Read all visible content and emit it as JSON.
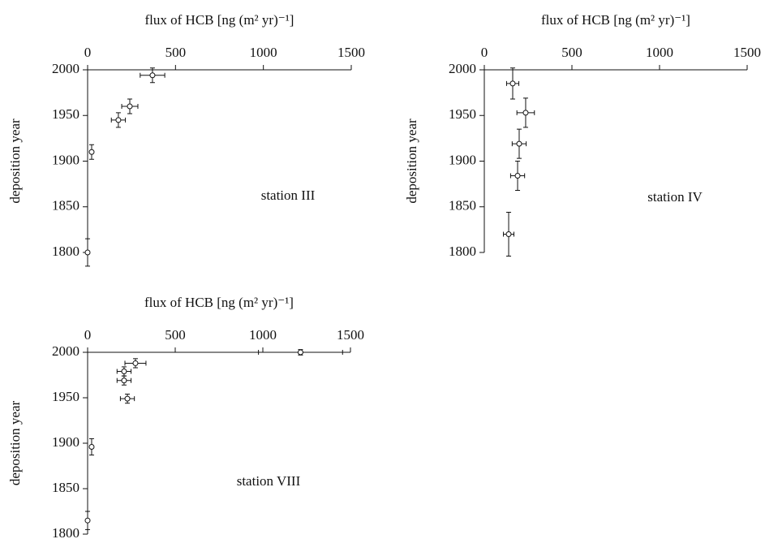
{
  "chart_data": [
    {
      "type": "scatter",
      "title": "flux of HCB [ng (m² yr)⁻¹]",
      "y_label": "deposition year",
      "annotation": "station III",
      "color": "#111111",
      "xlim": [
        0,
        1500
      ],
      "xticks": [
        0,
        500,
        1000,
        1500
      ],
      "ylim": [
        1800,
        2000
      ],
      "yticks": [
        1800,
        1850,
        1900,
        1950,
        2000
      ],
      "x": [
        369,
        240,
        175,
        23,
        0
      ],
      "values": [
        1994,
        1960,
        1945,
        1910,
        1800
      ],
      "x_err": [
        70,
        46,
        40,
        5,
        0
      ],
      "y_err": [
        8,
        8,
        8,
        8,
        15
      ]
    },
    {
      "type": "scatter",
      "title": "flux of HCB [ng (m² yr)⁻¹]",
      "y_label": "deposition year",
      "annotation": "station IV",
      "color": "#111111",
      "xlim": [
        0,
        1500
      ],
      "xticks": [
        0,
        500,
        1000,
        1500
      ],
      "ylim": [
        1800,
        2000
      ],
      "yticks": [
        1800,
        1850,
        1900,
        1950,
        2000
      ],
      "x": [
        162,
        236,
        199,
        190,
        139
      ],
      "values": [
        1985,
        1953,
        1919,
        1884,
        1820
      ],
      "x_err": [
        35,
        50,
        40,
        40,
        30
      ],
      "y_err": [
        17,
        16,
        16,
        16,
        24
      ]
    },
    {
      "type": "scatter",
      "title": "flux of HCB [ng (m² yr)⁻¹]",
      "y_label": "deposition year",
      "annotation": "station VIII",
      "color": "#111111",
      "xlim": [
        0,
        1500
      ],
      "xticks": [
        0,
        500,
        1000,
        1500
      ],
      "ylim": [
        1800,
        2000
      ],
      "yticks": [
        1800,
        1850,
        1900,
        1950,
        2000
      ],
      "x": [
        1215,
        273,
        208,
        208,
        227,
        23,
        0
      ],
      "values": [
        2000,
        1988,
        1979,
        1969,
        1949,
        1896,
        1815
      ],
      "x_err": [
        240,
        60,
        40,
        40,
        40,
        5,
        0
      ],
      "y_err": [
        3,
        5,
        5,
        5,
        5,
        9,
        10
      ]
    }
  ]
}
